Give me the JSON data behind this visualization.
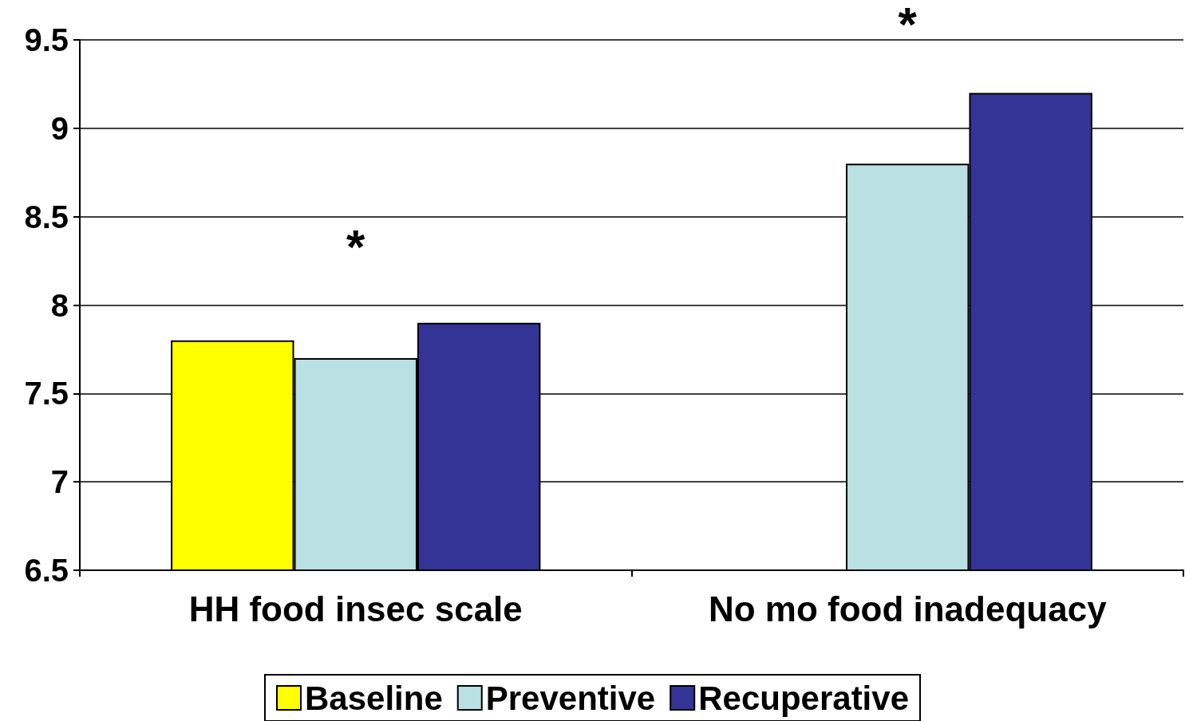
{
  "chart_data": {
    "type": "bar",
    "categories": [
      "HH food insec scale",
      "No mo food inadequacy"
    ],
    "series": [
      {
        "name": "Baseline",
        "color": "#ffff00",
        "values": [
          7.8,
          null
        ]
      },
      {
        "name": "Preventive",
        "color": "#b9e0e2",
        "values": [
          7.7,
          8.8
        ]
      },
      {
        "name": "Recuperative",
        "color": "#343497",
        "values": [
          7.9,
          9.2
        ]
      }
    ],
    "ylim": [
      6.5,
      9.5
    ],
    "yticks": [
      6.5,
      7,
      7.5,
      8,
      8.5,
      9,
      9.5
    ],
    "grid": "y",
    "legend": "bottom",
    "annotations": [
      "*",
      "*"
    ]
  }
}
